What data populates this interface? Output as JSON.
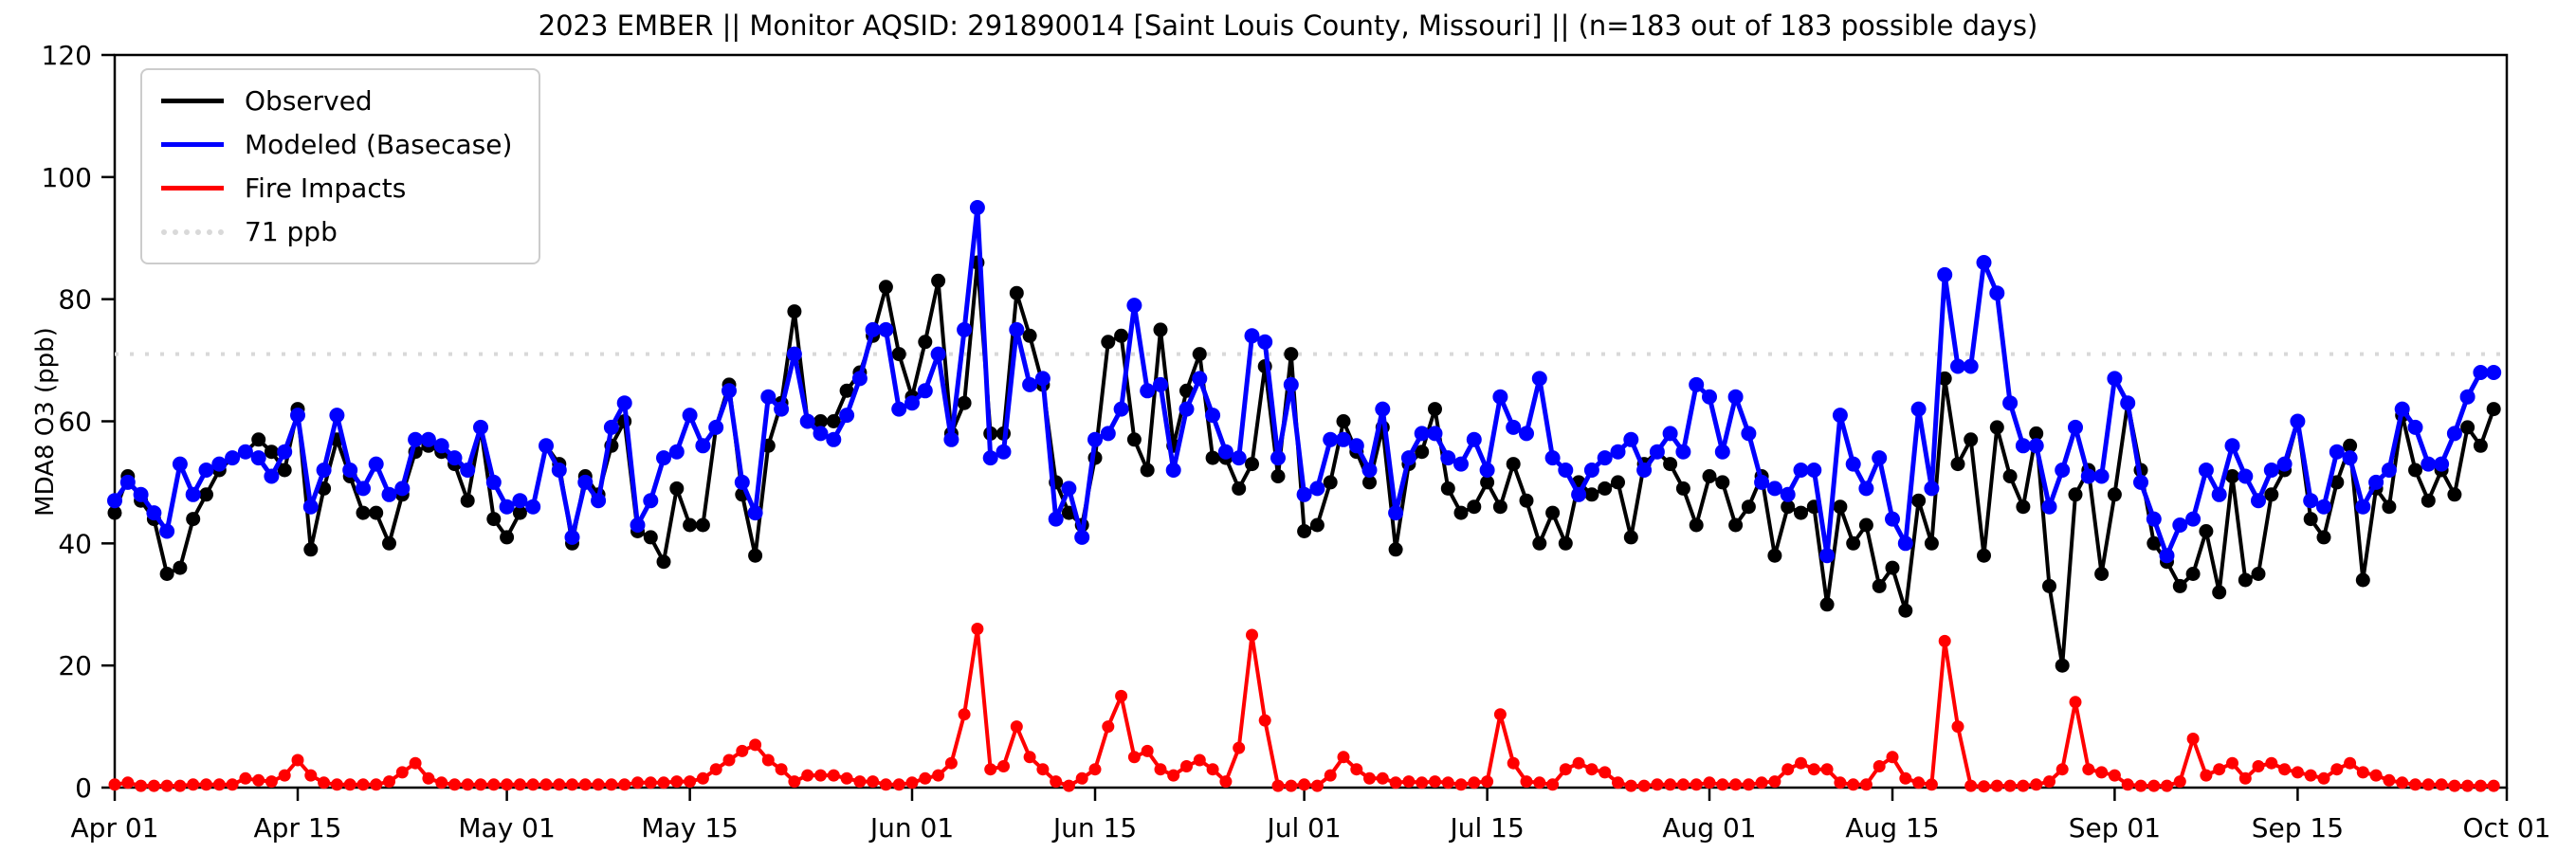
{
  "title": "2023 EMBER || Monitor AQSID: 291890014 [Saint Louis County, Missouri] || (n=183 out of 183 possible days)",
  "y_axis": {
    "label": "MDA8 O3 (ppb)",
    "min": 0,
    "max": 120,
    "ticks": [
      0,
      20,
      40,
      60,
      80,
      100,
      120
    ]
  },
  "x_axis": {
    "ticks": [
      {
        "label": "Apr 01",
        "day": 0
      },
      {
        "label": "Apr 15",
        "day": 14
      },
      {
        "label": "May 01",
        "day": 30
      },
      {
        "label": "May 15",
        "day": 44
      },
      {
        "label": "Jun 01",
        "day": 61
      },
      {
        "label": "Jun 15",
        "day": 75
      },
      {
        "label": "Jul 01",
        "day": 91
      },
      {
        "label": "Jul 15",
        "day": 105
      },
      {
        "label": "Aug 01",
        "day": 122
      },
      {
        "label": "Aug 15",
        "day": 136
      },
      {
        "label": "Sep 01",
        "day": 153
      },
      {
        "label": "Sep 15",
        "day": 167
      },
      {
        "label": "Oct 01",
        "day": 183
      }
    ]
  },
  "legend": {
    "items": [
      {
        "label": "Observed",
        "color": "#000000",
        "style": "solid"
      },
      {
        "label": "Modeled (Basecase)",
        "color": "#0000ff",
        "style": "solid"
      },
      {
        "label": "Fire Impacts",
        "color": "#ff0000",
        "style": "solid"
      },
      {
        "label": "71 ppb",
        "color": "#d9d9d9",
        "style": "dotted"
      }
    ]
  },
  "chart_data": {
    "type": "line",
    "title": "2023 EMBER || Monitor AQSID: 291890014 [Saint Louis County, Missouri] || (n=183 out of 183 possible days)",
    "xlabel": "",
    "ylabel": "MDA8 O3 (ppb)",
    "ylim": [
      0,
      120
    ],
    "x_range_days": [
      "Apr 01",
      "Oct 01"
    ],
    "n_days": 183,
    "threshold_line": {
      "value": 71,
      "label": "71 ppb",
      "color": "#d9d9d9"
    },
    "grid": false,
    "legend_position": "upper left",
    "series": [
      {
        "name": "Observed",
        "color": "#000000",
        "values": [
          45,
          51,
          47,
          44,
          35,
          36,
          44,
          48,
          52,
          54,
          55,
          57,
          55,
          52,
          62,
          39,
          49,
          57,
          51,
          45,
          45,
          40,
          48,
          55,
          56,
          55,
          53,
          47,
          59,
          44,
          41,
          45,
          46,
          56,
          53,
          40,
          51,
          48,
          56,
          60,
          42,
          41,
          37,
          49,
          43,
          43,
          59,
          66,
          48,
          38,
          56,
          63,
          78,
          60,
          60,
          60,
          65,
          68,
          74,
          82,
          71,
          64,
          73,
          83,
          58,
          63,
          86,
          58,
          58,
          81,
          74,
          66,
          50,
          45,
          43,
          54,
          73,
          74,
          57,
          52,
          75,
          56,
          65,
          71,
          54,
          54,
          49,
          53,
          69,
          51,
          71,
          42,
          43,
          50,
          60,
          55,
          50,
          59,
          39,
          53,
          55,
          62,
          49,
          45,
          46,
          50,
          46,
          53,
          47,
          40,
          45,
          40,
          50,
          48,
          49,
          50,
          41,
          53,
          55,
          53,
          49,
          43,
          51,
          50,
          43,
          46,
          51,
          38,
          46,
          45,
          46,
          30,
          46,
          40,
          43,
          33,
          36,
          29,
          47,
          40,
          67,
          53,
          57,
          38,
          59,
          51,
          46,
          58,
          33,
          20,
          48,
          52,
          35,
          48,
          63,
          52,
          40,
          37,
          33,
          35,
          42,
          32,
          51,
          34,
          35,
          48,
          52,
          60,
          44,
          41,
          50,
          56,
          34,
          49,
          46,
          61,
          52,
          47,
          52,
          48,
          59,
          56,
          62
        ]
      },
      {
        "name": "Modeled (Basecase)",
        "color": "#0000ff",
        "values": [
          47,
          50,
          48,
          45,
          42,
          53,
          48,
          52,
          53,
          54,
          55,
          54,
          51,
          55,
          61,
          46,
          52,
          61,
          52,
          49,
          53,
          48,
          49,
          57,
          57,
          56,
          54,
          52,
          59,
          50,
          46,
          47,
          46,
          56,
          52,
          41,
          50,
          47,
          59,
          63,
          43,
          47,
          54,
          55,
          61,
          56,
          59,
          65,
          50,
          45,
          64,
          62,
          71,
          60,
          58,
          57,
          61,
          67,
          75,
          75,
          62,
          63,
          65,
          71,
          57,
          75,
          95,
          54,
          55,
          75,
          66,
          67,
          44,
          49,
          41,
          57,
          58,
          62,
          79,
          65,
          66,
          52,
          62,
          67,
          61,
          55,
          54,
          74,
          73,
          54,
          66,
          48,
          49,
          57,
          57,
          56,
          52,
          62,
          45,
          54,
          58,
          58,
          54,
          53,
          57,
          52,
          64,
          59,
          58,
          67,
          54,
          52,
          48,
          52,
          54,
          55,
          57,
          52,
          55,
          58,
          55,
          66,
          64,
          55,
          64,
          58,
          50,
          49,
          48,
          52,
          52,
          38,
          61,
          53,
          49,
          54,
          44,
          40,
          62,
          49,
          84,
          69,
          69,
          86,
          81,
          63,
          56,
          56,
          46,
          52,
          59,
          51,
          51,
          67,
          63,
          50,
          44,
          38,
          43,
          44,
          52,
          48,
          56,
          51,
          47,
          52,
          53,
          60,
          47,
          46,
          55,
          54,
          46,
          50,
          52,
          62,
          59,
          53,
          53,
          58,
          64,
          68,
          68
        ]
      },
      {
        "name": "Fire Impacts",
        "color": "#ff0000",
        "values": [
          0.5,
          0.8,
          0.3,
          0.3,
          0.3,
          0.3,
          0.5,
          0.5,
          0.5,
          0.5,
          1.5,
          1.2,
          1,
          2,
          4.5,
          2,
          0.8,
          0.5,
          0.5,
          0.5,
          0.5,
          1,
          2.5,
          4,
          1.5,
          0.8,
          0.5,
          0.5,
          0.5,
          0.5,
          0.5,
          0.5,
          0.5,
          0.5,
          0.5,
          0.5,
          0.5,
          0.5,
          0.5,
          0.5,
          0.8,
          0.8,
          0.8,
          1,
          1,
          1.5,
          3,
          4.5,
          6,
          7,
          4.5,
          3,
          1,
          2,
          2,
          2,
          1.5,
          1,
          1,
          0.5,
          0.5,
          0.8,
          1.5,
          2,
          4,
          12,
          26,
          3,
          3.5,
          10,
          5,
          3,
          1,
          0.3,
          1.5,
          3,
          10,
          15,
          5,
          6,
          3,
          2,
          3.5,
          4.5,
          3,
          1,
          6.5,
          25,
          11,
          0.3,
          0.3,
          0.5,
          0.3,
          2,
          5,
          3,
          1.5,
          1.5,
          0.8,
          1,
          0.8,
          1,
          0.8,
          0.5,
          0.8,
          1,
          12,
          4,
          1,
          0.8,
          0.5,
          3,
          4,
          3,
          2.5,
          0.8,
          0.3,
          0.3,
          0.5,
          0.5,
          0.5,
          0.5,
          0.8,
          0.5,
          0.5,
          0.5,
          0.8,
          1,
          3,
          4,
          3,
          3,
          0.8,
          0.5,
          0.5,
          3.5,
          5,
          1.5,
          0.8,
          0.5,
          24,
          10,
          0.3,
          0.2,
          0.3,
          0.3,
          0.3,
          0.5,
          1,
          3,
          14,
          3,
          2.5,
          2,
          0.5,
          0.3,
          0.3,
          0.3,
          1,
          8,
          2,
          3,
          4,
          1.5,
          3.5,
          4,
          3,
          2.5,
          2,
          1.5,
          3,
          4,
          2.5,
          2,
          1.2,
          0.8,
          0.5,
          0.5,
          0.5,
          0.3,
          0.3,
          0.3,
          0.3
        ]
      }
    ]
  }
}
